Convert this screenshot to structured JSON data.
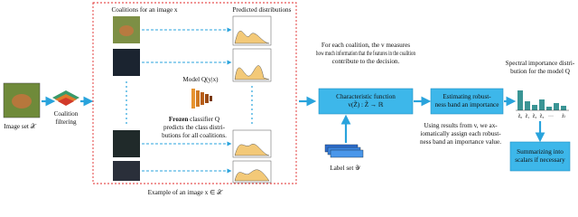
{
  "input": {
    "label": "Image set 𝒳"
  },
  "filtering": {
    "label": [
      "Coalition",
      "filtering"
    ]
  },
  "example_box": {
    "caption": "Example of an image x ∈ 𝒳",
    "coalitions_title": "Coalitions for an image x",
    "distributions_title": "Predicted distributions",
    "model_label": "Model Q(y|x)",
    "frozen_note": {
      "bold": "Frozen",
      "lines": [
        "classifier Q",
        "predicts the class distri-",
        "butions for all coalitions."
      ]
    }
  },
  "measure_text": [
    "For each coalition, the v measures",
    "how much information that the features in the coalition",
    "contribute to the decision."
  ],
  "characteristic_box": [
    "Characteristic function",
    "v(Z̃) : Z̃ → ℝ"
  ],
  "estimating_box": [
    "Estimating robust-",
    "ness band an importance"
  ],
  "assign_text": [
    "Using results from v, we ax-",
    "iomatically assign each robust-",
    "ness band an importance value."
  ],
  "label_set": "Label set 𝒴",
  "spectral": {
    "title": [
      "Spectral importance distri-",
      "bution for the model Q"
    ],
    "bar_labels": [
      "z̃₀",
      "z̃₁",
      "z̃₂",
      "z̃₃",
      "···",
      "z̃ₗ"
    ]
  },
  "summary_box": [
    "Summarizing into",
    "scalars if necessary"
  ]
}
